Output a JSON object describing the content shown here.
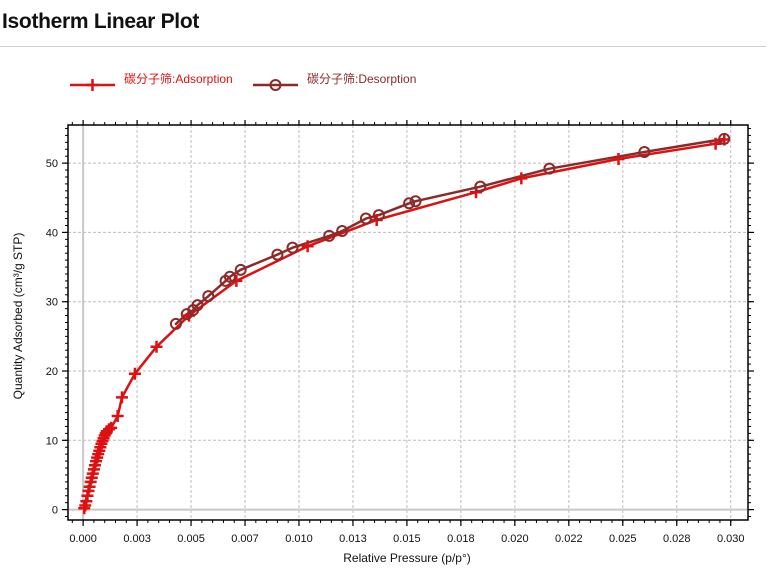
{
  "page": {
    "title": "Isotherm Linear Plot"
  },
  "chart_data": {
    "type": "line",
    "title": "",
    "xlabel": "Relative Pressure (p/p°)",
    "ylabel": "Quantity Adsorbed (cm³/g STP)",
    "xlim": [
      -0.0007,
      0.0308
    ],
    "ylim": [
      -1.5,
      55.5
    ],
    "x_ticks": [
      0.0,
      0.0025,
      0.005,
      0.0075,
      0.01,
      0.0125,
      0.015,
      0.0175,
      0.02,
      0.0225,
      0.025,
      0.0275,
      0.03
    ],
    "x_tick_labels": [
      "0.000",
      "0.003",
      "0.005",
      "0.007",
      "0.010",
      "0.013",
      "0.015",
      "0.018",
      "0.020",
      "0.022",
      "0.025",
      "0.028",
      "0.030"
    ],
    "y_ticks": [
      0,
      10,
      20,
      30,
      40,
      50
    ],
    "y_tick_labels": [
      "0",
      "10",
      "20",
      "30",
      "40",
      "50"
    ],
    "grid": true,
    "legend_position": "top-left",
    "series": [
      {
        "name": "碳分子筛:Adsorption",
        "color": "#dd1111",
        "marker": "plus",
        "x": [
          5e-05,
          0.0001,
          0.00015,
          0.0002,
          0.00025,
          0.0003,
          0.00035,
          0.0004,
          0.00045,
          0.0005,
          0.00055,
          0.0006,
          0.00065,
          0.0007,
          0.00075,
          0.0008,
          0.00085,
          0.0009,
          0.00095,
          0.001,
          0.00105,
          0.0011,
          0.0012,
          0.0013,
          0.0016,
          0.0018,
          0.0024,
          0.0034,
          0.0049,
          0.0071,
          0.0104,
          0.0136,
          0.0182,
          0.0203,
          0.0248,
          0.0293,
          0.0297
        ],
        "y": [
          0.2,
          0.6,
          1.2,
          2.0,
          2.7,
          3.3,
          4.0,
          4.6,
          5.2,
          5.8,
          6.4,
          7.0,
          7.5,
          8.0,
          8.5,
          9.0,
          9.5,
          9.9,
          10.3,
          10.7,
          11.0,
          11.3,
          11.6,
          11.8,
          13.5,
          16.2,
          19.6,
          23.5,
          28.0,
          33.0,
          38.0,
          41.8,
          45.8,
          47.8,
          50.6,
          52.8,
          53.4
        ]
      },
      {
        "name": "碳分子筛:Desorption",
        "color": "#8c2a2a",
        "marker": "circle",
        "x": [
          0.0297,
          0.026,
          0.0216,
          0.0184,
          0.0154,
          0.0151,
          0.0137,
          0.0131,
          0.012,
          0.0114,
          0.0097,
          0.009,
          0.0073,
          0.0068,
          0.0066,
          0.0058,
          0.0053,
          0.0051,
          0.0048,
          0.0043
        ],
        "y": [
          53.5,
          51.6,
          49.2,
          46.6,
          44.5,
          44.2,
          42.5,
          42.0,
          40.2,
          39.5,
          37.8,
          36.8,
          34.6,
          33.6,
          33.0,
          30.8,
          29.5,
          28.8,
          28.2,
          26.8
        ]
      }
    ]
  }
}
